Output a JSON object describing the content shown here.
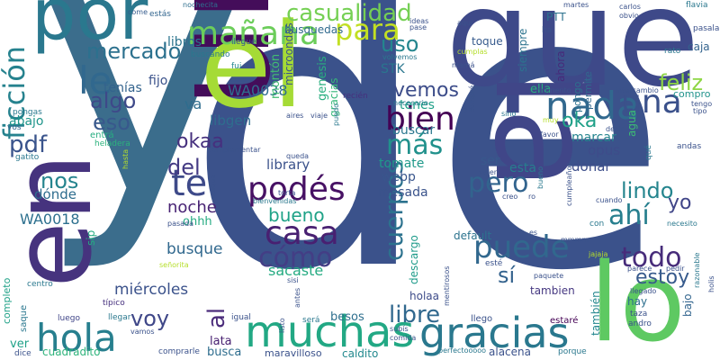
{
  "words": [
    {
      "text": "de",
      "color": "#3b528b"
    },
    {
      "text": "y",
      "color": "#3b6d8c"
    },
    {
      "text": "que",
      "color": "#3e4989"
    },
    {
      "text": "la",
      "color": "#404688"
    },
    {
      "text": "un",
      "color": "#440d5a"
    },
    {
      "text": "en",
      "color": "#46337e"
    },
    {
      "text": "el",
      "color": "#a5db36"
    },
    {
      "text": "lo",
      "color": "#5ec962"
    },
    {
      "text": "por",
      "color": "#2a788e"
    },
    {
      "text": "muchas",
      "color": "#22a884"
    },
    {
      "text": "gracias",
      "color": "#2a788e"
    },
    {
      "text": "hola",
      "color": "#277f8e"
    },
    {
      "text": "mañana",
      "color": "#6ccd5a"
    },
    {
      "text": "casualidad",
      "color": "#75d054"
    },
    {
      "text": "para",
      "color": "#c2df23"
    },
    {
      "text": "nada",
      "color": "#31688e"
    },
    {
      "text": "una",
      "color": "#3b518b"
    },
    {
      "text": "bien",
      "color": "#440154"
    },
    {
      "text": "casa",
      "color": "#482071"
    },
    {
      "text": "puede",
      "color": "#31688e"
    },
    {
      "text": "le",
      "color": "#31688e"
    },
    {
      "text": "ficción",
      "color": "#26828e"
    },
    {
      "text": "te",
      "color": "#3e4a89"
    },
    {
      "text": "podés",
      "color": "#471164"
    },
    {
      "text": "cómo",
      "color": "#433e85"
    },
    {
      "text": "todo",
      "color": "#472c7a"
    },
    {
      "text": "pero",
      "color": "#32648e"
    },
    {
      "text": "ahí",
      "color": "#277f8e"
    },
    {
      "text": "más",
      "color": "#21918c"
    },
    {
      "text": "libre",
      "color": "#31688e"
    },
    {
      "text": "cuerpos",
      "color": "#2c728e"
    },
    {
      "text": "bueno",
      "color": "#1fa287"
    },
    {
      "text": "mercado",
      "color": "#2c718e"
    },
    {
      "text": "algo",
      "color": "#3e4989"
    },
    {
      "text": "eso",
      "color": "#38588c"
    },
    {
      "text": "pdf",
      "color": "#3a548c"
    },
    {
      "text": "del",
      "color": "#443b84"
    },
    {
      "text": "nos",
      "color": "#25848e"
    },
    {
      "text": "voy",
      "color": "#3f4788"
    },
    {
      "text": "al",
      "color": "#4b2c7b"
    },
    {
      "text": "sí",
      "color": "#33628d"
    },
    {
      "text": "uso",
      "color": "#24868e"
    },
    {
      "text": "vemos",
      "color": "#3d4d8a"
    },
    {
      "text": "feliz",
      "color": "#8ed645"
    },
    {
      "text": "oka",
      "color": "#1fa088"
    },
    {
      "text": "okaa",
      "color": "#46307e"
    },
    {
      "text": "lindo",
      "color": "#25858e"
    },
    {
      "text": "yo",
      "color": "#404588"
    },
    {
      "text": "estoy",
      "color": "#375a8c"
    },
    {
      "text": "miércoles",
      "color": "#3b528b"
    },
    {
      "text": "noche",
      "color": "#482374"
    },
    {
      "text": "busque",
      "color": "#31688e"
    },
    {
      "text": "sacaste",
      "color": "#25ab82"
    },
    {
      "text": "library",
      "color": "#3b528b"
    },
    {
      "text": "WA0038",
      "color": "#2f6c8e"
    },
    {
      "text": "WA0018",
      "color": "#2d708e"
    },
    {
      "text": "libros",
      "color": "#2b748e"
    },
    {
      "text": "libgen",
      "color": "#2e6e8e"
    },
    {
      "text": "tenías",
      "color": "#33638d"
    },
    {
      "text": "fijo",
      "color": "#3b528b"
    },
    {
      "text": "va",
      "color": "#2e6d8e"
    },
    {
      "text": "abajo",
      "color": "#1f958b"
    },
    {
      "text": "dónde",
      "color": "#2e6d8e"
    },
    {
      "text": "ohhh",
      "color": "#25ab82"
    },
    {
      "text": "sip",
      "color": "#25ab82"
    },
    {
      "text": "ser",
      "color": "#38598c"
    },
    {
      "text": "esta",
      "color": "#277e8e"
    },
    {
      "text": "opus",
      "color": "#3e4c8a"
    },
    {
      "text": "donar",
      "color": "#3d4e8a"
    },
    {
      "text": "marcar",
      "color": "#25848e"
    },
    {
      "text": "tomate",
      "color": "#1f998a"
    },
    {
      "text": "buscar",
      "color": "#2a778e"
    },
    {
      "text": "webp",
      "color": "#39558c"
    },
    {
      "text": "mesada",
      "color": "#3a538b"
    },
    {
      "text": "tenes",
      "color": "#1fa088"
    },
    {
      "text": "STK",
      "color": "#2a768e"
    },
    {
      "text": "genesis",
      "color": "#29af7f"
    },
    {
      "text": "montón",
      "color": "#42be71"
    },
    {
      "text": "microondas",
      "color": "#3a548c"
    },
    {
      "text": "gracias",
      "color": "#35b779"
    },
    {
      "text": "busquedas",
      "color": "#306a8e"
    },
    {
      "text": "tambien",
      "color": "#453781"
    },
    {
      "text": "ella",
      "color": "#2ab07f"
    },
    {
      "text": "ahora",
      "color": "#472a7a"
    },
    {
      "text": "pongo",
      "color": "#2c728e"
    },
    {
      "text": "permite",
      "color": "#31688e"
    },
    {
      "text": "PTT",
      "color": "#2c728e"
    },
    {
      "text": "siempre",
      "color": "#2c738e"
    },
    {
      "text": "caja",
      "color": "#33638d"
    },
    {
      "text": "compro",
      "color": "#20938c"
    },
    {
      "text": "agua",
      "color": "#3dbc74"
    },
    {
      "text": "bajo",
      "color": "#32658e"
    },
    {
      "text": "hay",
      "color": "#2e6f8e"
    },
    {
      "text": "también",
      "color": "#24878e"
    },
    {
      "text": "holaa",
      "color": "#3e4c8a"
    },
    {
      "text": "besos",
      "color": "#2e6f8e"
    },
    {
      "text": "lata",
      "color": "#482071"
    },
    {
      "text": "busca",
      "color": "#2e6d8e"
    },
    {
      "text": "caldito",
      "color": "#23898e"
    },
    {
      "text": "maravilloso",
      "color": "#3b528b"
    },
    {
      "text": "completo",
      "color": "#1fa187"
    },
    {
      "text": "ver",
      "color": "#1fa188"
    },
    {
      "text": "cuadradito",
      "color": "#2fb47c"
    },
    {
      "text": "alacena",
      "color": "#3b528b"
    },
    {
      "text": "descargo",
      "color": "#1e9b8a"
    },
    {
      "text": "default",
      "color": "#2c738e"
    },
    {
      "text": "toque",
      "color": "#375b8d"
    },
    {
      "text": "recién",
      "color": "#472f7d"
    },
    {
      "text": "llegue",
      "color": "#3b528b"
    },
    {
      "text": "buscando",
      "color": "#2a788e"
    },
    {
      "text": "fui",
      "color": "#25858e"
    },
    {
      "text": "nochecita",
      "color": "#2e6e8e"
    },
    {
      "text": "estás",
      "color": "#32658e"
    },
    {
      "text": "come",
      "color": "#365c8d"
    },
    {
      "text": "entrá",
      "color": "#27ad81"
    },
    {
      "text": "heladera",
      "color": "#2db27d"
    },
    {
      "text": "vos",
      "color": "#33638d"
    },
    {
      "text": "gatito",
      "color": "#2a778e"
    },
    {
      "text": "pongas",
      "color": "#29798e"
    },
    {
      "text": "centro",
      "color": "#2a788e"
    },
    {
      "text": "saque",
      "color": "#2a778e"
    },
    {
      "text": "luego",
      "color": "#404588"
    },
    {
      "text": "típico",
      "color": "#46307e"
    },
    {
      "text": "llegar",
      "color": "#2a788e"
    },
    {
      "text": "vamos",
      "color": "#3b528b"
    },
    {
      "text": "dice",
      "color": "#3b528b"
    },
    {
      "text": "comprarle",
      "color": "#3b528b"
    },
    {
      "text": "igual",
      "color": "#3b528b"
    },
    {
      "text": "será",
      "color": "#2a788e"
    },
    {
      "text": "subís",
      "color": "#3b528b"
    },
    {
      "text": "comida",
      "color": "#3b528b"
    },
    {
      "text": "perfectooooo",
      "color": "#2a788e"
    },
    {
      "text": "llego",
      "color": "#3b528b"
    },
    {
      "text": "estaré",
      "color": "#440154"
    },
    {
      "text": "porque",
      "color": "#2a788e"
    },
    {
      "text": "taza",
      "color": "#3b528b"
    },
    {
      "text": "andro",
      "color": "#3b528b"
    },
    {
      "text": "llegado",
      "color": "#3b528b"
    },
    {
      "text": "parece",
      "color": "#3b528b"
    },
    {
      "text": "pedir",
      "color": "#3b528b"
    },
    {
      "text": "razonable",
      "color": "#2a788e"
    },
    {
      "text": "holis",
      "color": "#3b528b"
    },
    {
      "text": "necesito",
      "color": "#2a788e"
    },
    {
      "text": "cuando",
      "color": "#3b528b"
    },
    {
      "text": "con",
      "color": "#2a788e"
    },
    {
      "text": "andas",
      "color": "#3b528b"
    },
    {
      "text": "qué",
      "color": "#2a788e"
    },
    {
      "text": "flavia",
      "color": "#2a788e"
    },
    {
      "text": "pasala",
      "color": "#3b528b"
    },
    {
      "text": "rato",
      "color": "#2a788e"
    },
    {
      "text": "tengo",
      "color": "#3b528b"
    },
    {
      "text": "tipo",
      "color": "#3b528b"
    },
    {
      "text": "intercambio",
      "color": "#3b528b"
    },
    {
      "text": "momento",
      "color": "#3b528b"
    },
    {
      "text": "decir",
      "color": "#3b528b"
    },
    {
      "text": "muy",
      "color": "#b5de2b"
    },
    {
      "text": "favor",
      "color": "#3b528b"
    },
    {
      "text": "sino",
      "color": "#2a788e"
    },
    {
      "text": "compré",
      "color": "#3b528b"
    },
    {
      "text": "ah",
      "color": "#3b528b"
    },
    {
      "text": "necesario",
      "color": "#2a788e"
    },
    {
      "text": "mamá",
      "color": "#3b528b"
    },
    {
      "text": "cumplas",
      "color": "#b5de2b"
    },
    {
      "text": "aquí",
      "color": "#3b528b"
    },
    {
      "text": "ideas",
      "color": "#3b528b"
    },
    {
      "text": "pase",
      "color": "#3b528b"
    },
    {
      "text": "volvemos",
      "color": "#2a788e"
    },
    {
      "text": "ha",
      "color": "#3b528b"
    },
    {
      "text": "martes",
      "color": "#3b528b"
    },
    {
      "text": "carlos",
      "color": "#3b528b"
    },
    {
      "text": "obvio",
      "color": "#3b528b"
    },
    {
      "text": "viaje",
      "color": "#3b528b"
    },
    {
      "text": "puedo",
      "color": "#2a788e"
    },
    {
      "text": "aires",
      "color": "#3b528b"
    },
    {
      "text": "queda",
      "color": "#3b528b"
    },
    {
      "text": "complementar",
      "color": "#3b528b"
    },
    {
      "text": "torta",
      "color": "#3b528b"
    },
    {
      "text": "bienvenidas",
      "color": "#2a788e"
    },
    {
      "text": "asique",
      "color": "#3b528b"
    },
    {
      "text": "hasta",
      "color": "#b5de2b"
    },
    {
      "text": "pasada",
      "color": "#3b528b"
    },
    {
      "text": "señorita",
      "color": "#b5de2b"
    },
    {
      "text": "veo",
      "color": "#3b528b"
    },
    {
      "text": "sisi",
      "color": "#3b528b"
    },
    {
      "text": "antes",
      "color": "#3b528b"
    },
    {
      "text": "listo",
      "color": "#3b528b"
    },
    {
      "text": "mentirosos",
      "color": "#3b528b"
    },
    {
      "text": "esté",
      "color": "#3b528b"
    },
    {
      "text": "paquete",
      "color": "#3b528b"
    },
    {
      "text": "creo",
      "color": "#3b528b"
    },
    {
      "text": "ro",
      "color": "#3b528b"
    },
    {
      "text": "bueno",
      "color": "#2a788e"
    },
    {
      "text": "valen",
      "color": "#3b528b"
    },
    {
      "text": "es",
      "color": "#3b528b"
    },
    {
      "text": "jajaja",
      "color": "#b5de2b"
    },
    {
      "text": "cumpleaños",
      "color": "#3b528b"
    },
    {
      "text": "mmmm",
      "color": "#3b528b"
    }
  ]
}
